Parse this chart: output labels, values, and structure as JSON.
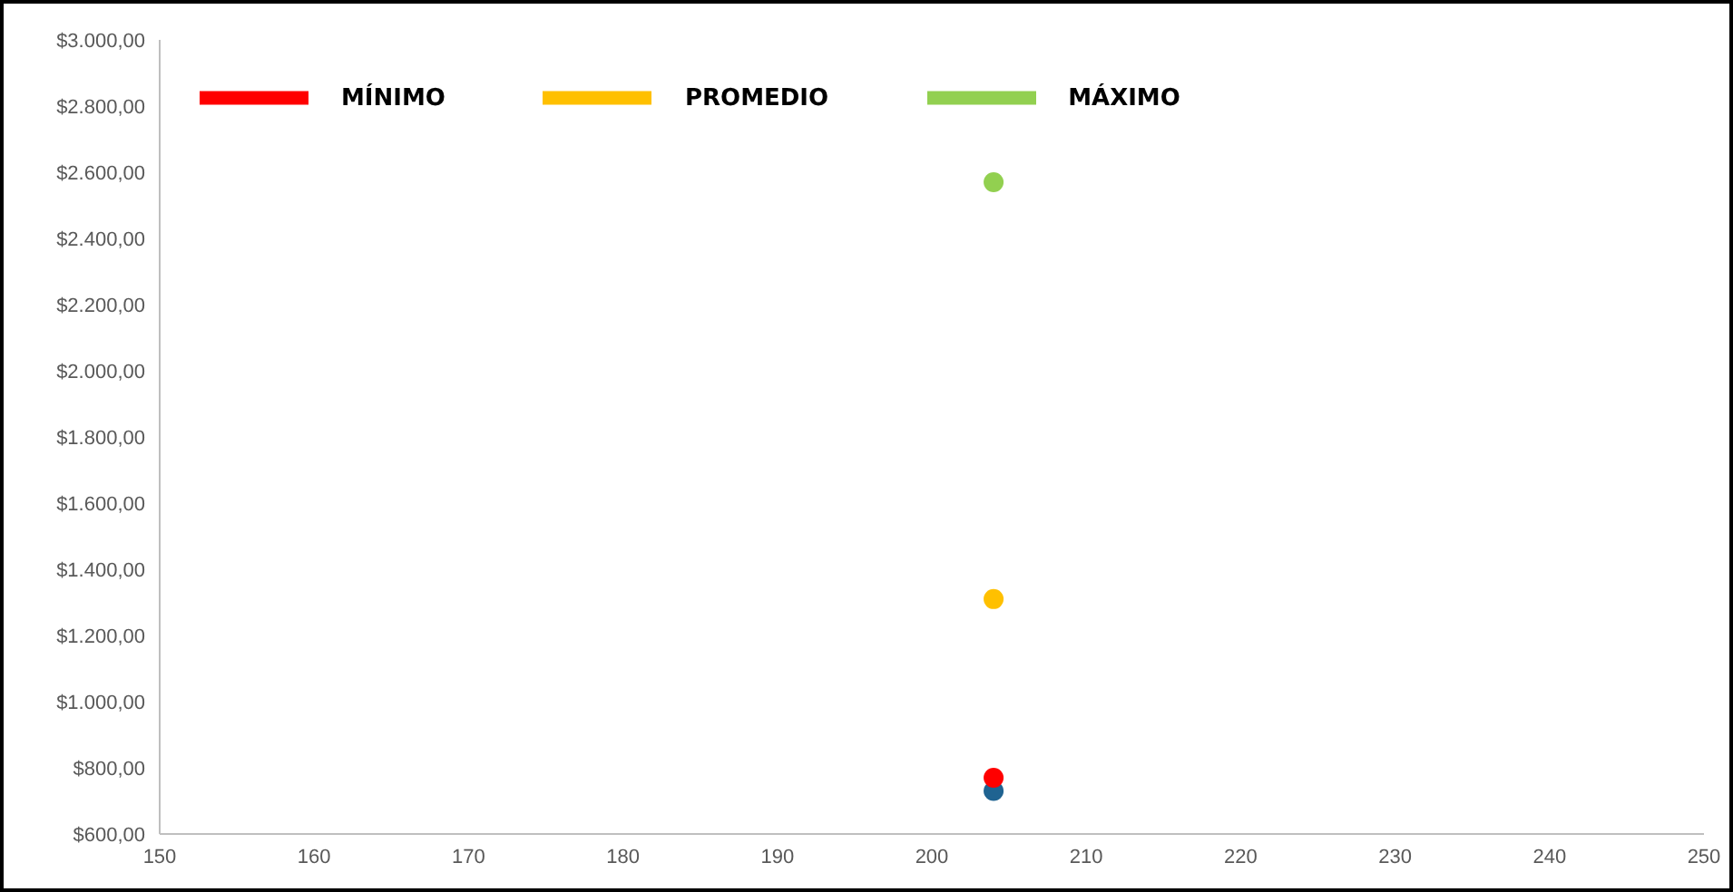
{
  "chart_data": {
    "type": "scatter",
    "marker": "circle",
    "legend": "top left",
    "grid": false,
    "xlim": [
      150,
      250
    ],
    "xticks": [
      150,
      160,
      170,
      180,
      190,
      200,
      210,
      220,
      230,
      240,
      250
    ],
    "ylim": [
      600,
      3000
    ],
    "yticks": [
      {
        "value": 600,
        "label": "$600,00"
      },
      {
        "value": 800,
        "label": "$800,00"
      },
      {
        "value": 1000,
        "label": "$1.000,00"
      },
      {
        "value": 1200,
        "label": "$1.200,00"
      },
      {
        "value": 1400,
        "label": "$1.400,00"
      },
      {
        "value": 1600,
        "label": "$1.600,00"
      },
      {
        "value": 1800,
        "label": "$1.800,00"
      },
      {
        "value": 2000,
        "label": "$2.000,00"
      },
      {
        "value": 2200,
        "label": "$2.200,00"
      },
      {
        "value": 2400,
        "label": "$2.400,00"
      },
      {
        "value": 2600,
        "label": "$2.600,00"
      },
      {
        "value": 2800,
        "label": "$2.800,00"
      },
      {
        "value": 3000,
        "label": "$3.000,00"
      }
    ],
    "x": [
      204
    ],
    "series": [
      {
        "color": "#1f6391",
        "values": [
          730
        ]
      },
      {
        "name": "MÍNIMO",
        "color": "#ff0000",
        "values": [
          770
        ]
      },
      {
        "name": "PROMEDIO",
        "color": "#ffc000",
        "values": [
          1310
        ]
      },
      {
        "name": "MÁXIMO",
        "color": "#92d050",
        "values": [
          2570
        ]
      }
    ]
  }
}
